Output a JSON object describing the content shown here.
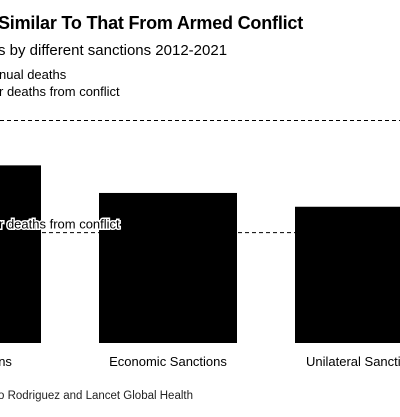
{
  "colors": {
    "bar": "#000000",
    "text": "#000000",
    "background": "#ffffff"
  },
  "chart_data": {
    "type": "bar",
    "title": "Similar To That From Armed Conflict",
    "subtitle": "s by different sanctions 2012-2021",
    "categories": [
      "ions",
      "Economic Sanctions",
      "Unilateral Sancti"
    ],
    "values": [
      103,
      87,
      79
    ],
    "ylim": [
      0,
      138
    ],
    "grid": false,
    "legend": "top-left",
    "legend_entries": [
      "nual deaths",
      "r deaths from conflict"
    ],
    "reference_lines": [
      {
        "label": "r deaths from conflict",
        "value": 129
      },
      {
        "label": "r deaths from conflict",
        "value": 64
      }
    ],
    "source": "o Rodriguez and Lancet Global Health"
  }
}
